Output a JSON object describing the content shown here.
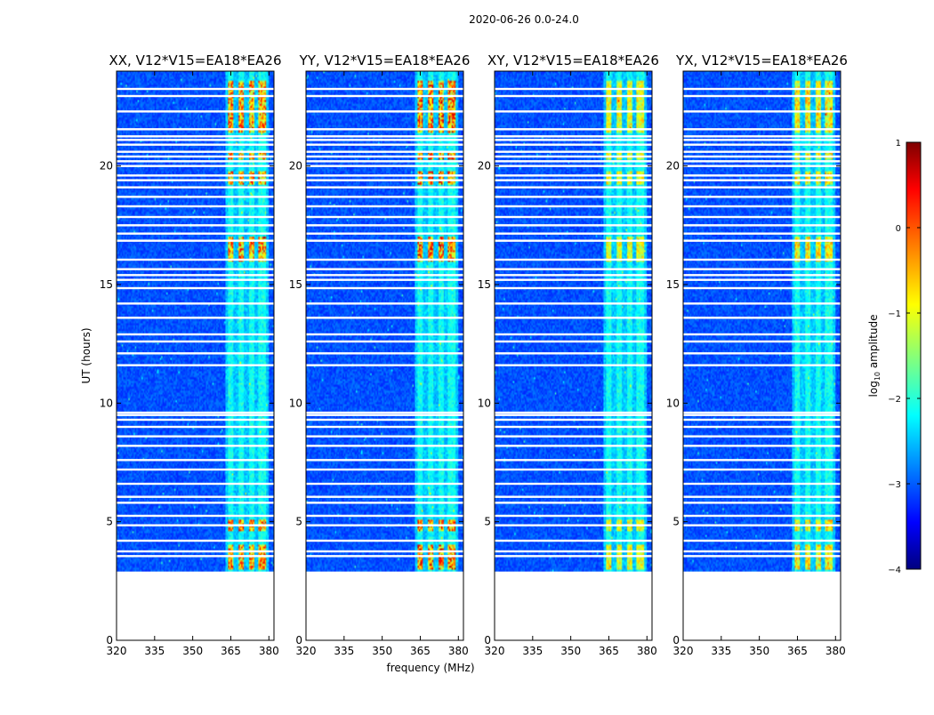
{
  "suptitle": "2020-06-26 0.0-24.0",
  "chart_data": {
    "type": "heatmap",
    "title": "2020-06-26 0.0-24.0",
    "xlabel": "frequency (MHz)",
    "ylabel": "UT (hours)",
    "xlim": [
      320,
      382
    ],
    "ylim": [
      0,
      24
    ],
    "x_ticks": [
      320,
      335,
      350,
      365,
      380
    ],
    "y_ticks": [
      0,
      5,
      10,
      15,
      20
    ],
    "data_start_hour": 2.9,
    "data_end_hour": 24.0,
    "panels": [
      {
        "title": "XX, V12*V15=EA18*EA26",
        "peak_level": 0.4
      },
      {
        "title": "YY, V12*V15=EA18*EA26",
        "peak_level": 0.45
      },
      {
        "title": "XY, V12*V15=EA18*EA26",
        "peak_level": 0.2
      },
      {
        "title": "YX, V12*V15=EA18*EA26",
        "peak_level": 0.25
      }
    ],
    "rfi_band_mhz": [
      363,
      380
    ],
    "rfi_channels_mhz": [
      [
        364,
        366
      ],
      [
        368,
        370
      ],
      [
        372,
        374
      ],
      [
        376,
        379
      ]
    ],
    "rfi_strong_hours": [
      [
        3.0,
        4.0
      ],
      [
        4.6,
        5.1
      ],
      [
        16.0,
        17.0
      ],
      [
        19.2,
        19.8
      ],
      [
        20.3,
        20.6
      ],
      [
        21.4,
        23.6
      ]
    ],
    "gap_hours": [
      3.55,
      3.75,
      4.2,
      4.85,
      5.25,
      5.8,
      6.05,
      6.6,
      7.2,
      7.6,
      8.2,
      8.6,
      9.0,
      9.3,
      9.5,
      9.6,
      11.6,
      12.1,
      12.6,
      12.9,
      13.6,
      14.2,
      14.85,
      15.2,
      15.4,
      15.65,
      16.05,
      16.85,
      17.15,
      17.5,
      17.85,
      18.3,
      18.7,
      19.1,
      19.4,
      19.6,
      20.0,
      20.2,
      20.4,
      20.6,
      20.9,
      21.1,
      21.25,
      21.55,
      22.3,
      22.95,
      23.25
    ],
    "colorbar": {
      "label": "log10 amplitude",
      "label_base": "log",
      "label_sub": "10",
      "label_rest": " amplitude",
      "range": [
        -4,
        1
      ],
      "ticks": [
        "1",
        "0",
        "−1",
        "−2",
        "−3",
        "−4"
      ]
    }
  }
}
